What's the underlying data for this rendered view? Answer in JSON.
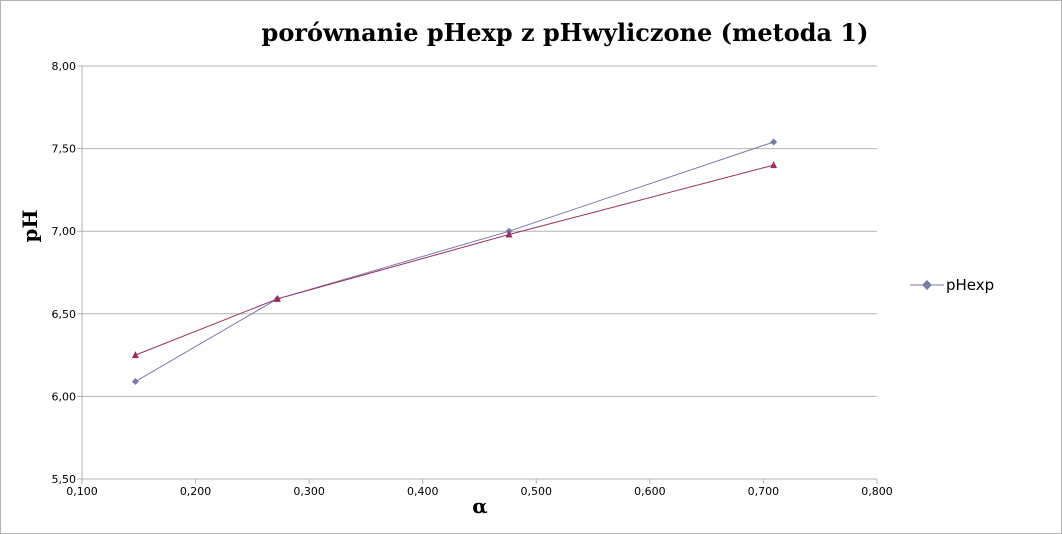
{
  "chart_data": {
    "type": "line",
    "title": "porównanie pHexp z pHwyliczone (metoda 1)",
    "xlabel": "α",
    "ylabel": "pH",
    "xlim": [
      0.1,
      0.8
    ],
    "ylim": [
      5.5,
      8.0
    ],
    "x_ticks": [
      "0,100",
      "0,200",
      "0,300",
      "0,400",
      "0,500",
      "0,600",
      "0,700",
      "0,800"
    ],
    "y_ticks": [
      "8,00",
      "7,50",
      "7,00",
      "6,50",
      "6,00",
      "5,50"
    ],
    "grid": "horizontal",
    "legend_position": "right",
    "series": [
      {
        "name": "pHexp",
        "marker": "diamond",
        "color": "#7b7ba8",
        "x": [
          0.147,
          0.272,
          0.476,
          0.709
        ],
        "y": [
          6.09,
          6.59,
          7.0,
          7.54
        ]
      },
      {
        "marker": "triangle",
        "color": "#98305e",
        "x": [
          0.147,
          0.272,
          0.476,
          0.709
        ],
        "y": [
          6.25,
          6.59,
          6.98,
          7.4
        ]
      }
    ]
  }
}
